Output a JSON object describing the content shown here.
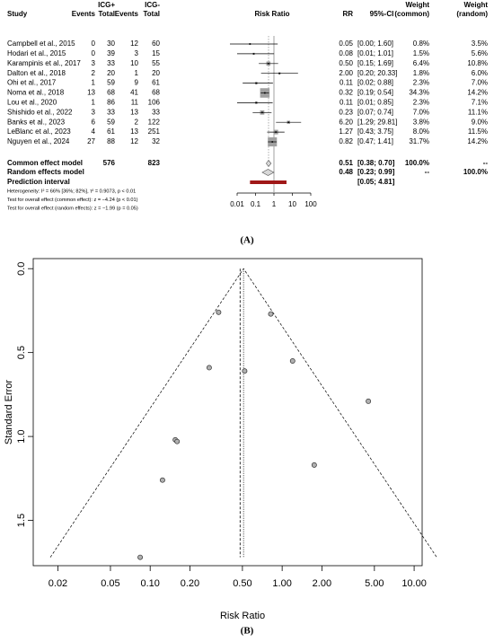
{
  "chart_data": [
    {
      "type": "forest",
      "panel_label": "(A)",
      "columns": {
        "study": "Study",
        "events_pos": "Events",
        "group_pos": "ICG+",
        "total_pos": "Total",
        "events_neg": "Events",
        "group_neg": "ICG-",
        "total_neg": "Total",
        "plot": "Risk Ratio",
        "rr": "RR",
        "ci": "95%-CI",
        "weight": "Weight",
        "weight_common": "(common)",
        "weight_random": "(random)"
      },
      "studies": [
        {
          "study": "Campbell et al., 2015",
          "events_pos": 0,
          "total_pos": 30,
          "events_neg": 12,
          "total_neg": 60,
          "rr": {
            "value": 0.05,
            "label": "0.05"
          },
          "ci": {
            "low": 0,
            "high": 1.6,
            "label": "[0.00; 1.60]"
          },
          "weight_common": "0.8%",
          "weight_random": "3.5%"
        },
        {
          "study": "Hodari et al., 2015",
          "events_pos": 0,
          "total_pos": 39,
          "events_neg": 3,
          "total_neg": 15,
          "rr": {
            "value": 0.08,
            "label": "0.08"
          },
          "ci": {
            "low": 0.01,
            "high": 1.01,
            "label": "[0.01; 1.01]"
          },
          "weight_common": "1.5%",
          "weight_random": "5.6%"
        },
        {
          "study": "Karampinis et al., 2017",
          "events_pos": 3,
          "total_pos": 33,
          "events_neg": 10,
          "total_neg": 55,
          "rr": {
            "value": 0.5,
            "label": "0.50"
          },
          "ci": {
            "low": 0.15,
            "high": 1.69,
            "label": "[0.15; 1.69]"
          },
          "weight_common": "6.4%",
          "weight_random": "10.8%"
        },
        {
          "study": "Dalton et al., 2018",
          "events_pos": 2,
          "total_pos": 20,
          "events_neg": 1,
          "total_neg": 20,
          "rr": {
            "value": 2,
            "label": "2.00"
          },
          "ci": {
            "low": 0.2,
            "high": 20.33,
            "label": "[0.20; 20.33]"
          },
          "weight_common": "1.8%",
          "weight_random": "6.0%"
        },
        {
          "study": "Ohi et al., 2017",
          "events_pos": 1,
          "total_pos": 59,
          "events_neg": 9,
          "total_neg": 61,
          "rr": {
            "value": 0.11,
            "label": "0.11"
          },
          "ci": {
            "low": 0.02,
            "high": 0.88,
            "label": "[0.02; 0.88]"
          },
          "weight_common": "2.3%",
          "weight_random": "7.0%"
        },
        {
          "study": "Noma et al., 2018",
          "events_pos": 13,
          "total_pos": 68,
          "events_neg": 41,
          "total_neg": 68,
          "rr": {
            "value": 0.32,
            "label": "0.32"
          },
          "ci": {
            "low": 0.19,
            "high": 0.54,
            "label": "[0.19; 0.54]"
          },
          "weight_common": "34.3%",
          "weight_random": "14.2%"
        },
        {
          "study": "Lou et al., 2020",
          "events_pos": 1,
          "total_pos": 86,
          "events_neg": 11,
          "total_neg": 106,
          "rr": {
            "value": 0.11,
            "label": "0.11"
          },
          "ci": {
            "low": 0.01,
            "high": 0.85,
            "label": "[0.01; 0.85]"
          },
          "weight_common": "2.3%",
          "weight_random": "7.1%"
        },
        {
          "study": "Shishido et al., 2022",
          "events_pos": 3,
          "total_pos": 33,
          "events_neg": 13,
          "total_neg": 33,
          "rr": {
            "value": 0.23,
            "label": "0.23"
          },
          "ci": {
            "low": 0.07,
            "high": 0.74,
            "label": "[0.07; 0.74]"
          },
          "weight_common": "7.0%",
          "weight_random": "11.1%"
        },
        {
          "study": "Banks et al., 2023",
          "events_pos": 6,
          "total_pos": 59,
          "events_neg": 2,
          "total_neg": 122,
          "rr": {
            "value": 6.2,
            "label": "6.20"
          },
          "ci": {
            "low": 1.29,
            "high": 29.81,
            "label": "[1.29; 29.81]"
          },
          "weight_common": "3.8%",
          "weight_random": "9.0%"
        },
        {
          "study": "LeBlanc et al., 2023",
          "events_pos": 4,
          "total_pos": 61,
          "events_neg": 13,
          "total_neg": 251,
          "rr": {
            "value": 1.27,
            "label": "1.27"
          },
          "ci": {
            "low": 0.43,
            "high": 3.75,
            "label": "[0.43; 3.75]"
          },
          "weight_common": "8.0%",
          "weight_random": "11.5%"
        },
        {
          "study": "Nguyen et al., 2024",
          "events_pos": 27,
          "total_pos": 88,
          "events_neg": 12,
          "total_neg": 32,
          "rr": {
            "value": 0.82,
            "label": "0.82"
          },
          "ci": {
            "low": 0.47,
            "high": 1.41,
            "label": "[0.47; 1.41]"
          },
          "weight_common": "31.7%",
          "weight_random": "14.2%"
        }
      ],
      "common": {
        "study": "Common effect model",
        "total_pos": 576,
        "total_neg": 823,
        "rr": {
          "value": 0.51,
          "label": "0.51"
        },
        "ci": {
          "low": 0.38,
          "high": 0.7,
          "label": "[0.38; 0.70]"
        },
        "weight_common": "100.0%",
        "weight_random": "--"
      },
      "random": {
        "study": "Random effects model",
        "rr": {
          "value": 0.48,
          "label": "0.48"
        },
        "ci": {
          "low": 0.23,
          "high": 0.99,
          "label": "[0.23; 0.99]"
        },
        "weight_common": "--",
        "weight_random": "100.0%"
      },
      "prediction": {
        "study": "Prediction interval",
        "ci": {
          "low": 0.05,
          "high": 4.81,
          "label": "[0.05; 4.81]"
        }
      },
      "notes": [
        "Heterogeneity: I² = 66% [36%; 82%], τ² = 0.9073, p < 0.01",
        "Test for overall effect (common effect): z = −4.24 (p < 0.01)",
        "Test for overall effect (random effects): z = −1.99 (p = 0.05)"
      ],
      "log_x": true,
      "xlim": [
        0.01,
        100
      ],
      "xticks": [
        0.01,
        0.1,
        1,
        10,
        100
      ],
      "reference_line": 1,
      "box_color": "#a0a0a0",
      "prediction_color": "#a01818"
    },
    {
      "type": "funnel",
      "panel_label": "(B)",
      "x_label": "Risk Ratio",
      "y_label": "Standard Error",
      "log_x": true,
      "y_reversed": true,
      "xlim": [
        0.013,
        11.5
      ],
      "ylim": [
        -0.06,
        1.77
      ],
      "xticks": [
        0.02,
        0.05,
        {
          "value": 0.1,
          "label": "0.10"
        },
        {
          "value": 0.2,
          "label": "0.20"
        },
        {
          "value": 0.5,
          "label": "0.50"
        },
        {
          "value": 1,
          "label": "1.00"
        },
        {
          "value": 2,
          "label": "2.00"
        },
        {
          "value": 5,
          "label": "5.00"
        },
        {
          "value": 10,
          "label": "10.00"
        }
      ],
      "yticks": [
        {
          "value": 0,
          "label": "0.0"
        },
        {
          "value": 0.5,
          "label": "0.5"
        },
        {
          "value": 1,
          "label": "1.0"
        },
        {
          "value": 1.5,
          "label": "1.5"
        }
      ],
      "x": [
        0.084,
        0.124,
        0.52,
        1.75,
        0.155,
        0.33,
        0.16,
        0.28,
        4.5,
        1.2,
        0.82
      ],
      "values": [
        1.72,
        1.26,
        0.61,
        1.17,
        1.02,
        0.26,
        1.03,
        0.59,
        0.79,
        0.55,
        0.27
      ],
      "common_effect": 0.51,
      "random_effect": 0.48,
      "color": "#b0b0b0"
    }
  ]
}
